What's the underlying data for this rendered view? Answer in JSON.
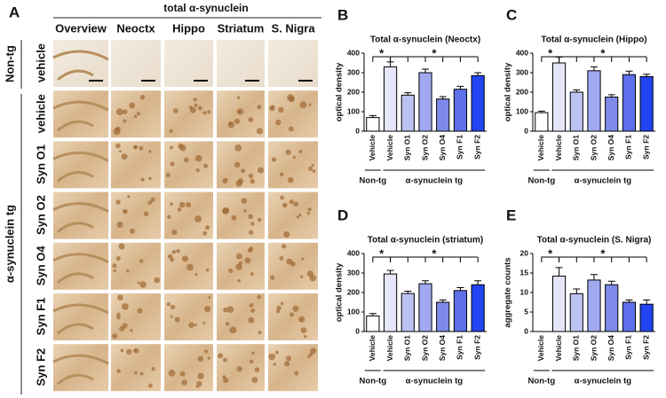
{
  "panel_a": {
    "letter": "A",
    "title": "total α-synuclein",
    "columns": [
      "Overview",
      "Neoctx",
      "Hippo",
      "Striatum",
      "S. Nigra"
    ],
    "groups": [
      "Non-tg",
      "α-synuclein tg"
    ],
    "rows": [
      "vehicle",
      "vehicle",
      "Syn O1",
      "Syn O2",
      "Syn O4",
      "Syn F1",
      "Syn F2"
    ]
  },
  "chart_data": [
    {
      "type": "bar",
      "panel": "B",
      "title": "Total α-synuclein (Neoctx)",
      "y_label": "optical density",
      "categories": [
        "Vehicle",
        "Vehicle",
        "Syn O1",
        "Syn O2",
        "Syn O4",
        "Syn F1",
        "Syn F2"
      ],
      "values": [
        70,
        330,
        185,
        300,
        165,
        215,
        285
      ],
      "errors": [
        10,
        25,
        12,
        18,
        12,
        15,
        15
      ],
      "colors": [
        "#ffffff",
        "#e6e6fa",
        "#bcc2f2",
        "#a0a9ef",
        "#7f8ae8",
        "#5e70ea",
        "#2244f2"
      ],
      "ylim": [
        0,
        400
      ],
      "yticks": [
        0,
        100,
        200,
        300,
        400
      ],
      "groups": [
        "Non-tg",
        "α-synuclein tg"
      ],
      "annotations": [
        "*",
        "*"
      ]
    },
    {
      "type": "bar",
      "panel": "C",
      "title": "Total α-synuclein (Hippo)",
      "y_label": "optical density",
      "categories": [
        "Vehicle",
        "Vehicle",
        "Syn O1",
        "Syn O2",
        "Syn O4",
        "Syn F1",
        "Syn F2"
      ],
      "values": [
        95,
        350,
        200,
        310,
        175,
        290,
        280
      ],
      "errors": [
        8,
        30,
        12,
        20,
        12,
        18,
        12
      ],
      "colors": [
        "#ffffff",
        "#e6e6fa",
        "#bcc2f2",
        "#a0a9ef",
        "#7f8ae8",
        "#5e70ea",
        "#2244f2"
      ],
      "ylim": [
        0,
        400
      ],
      "yticks": [
        0,
        100,
        200,
        300,
        400
      ],
      "groups": [
        "Non-tg",
        "α-synuclein tg"
      ],
      "annotations": [
        "*",
        "*"
      ]
    },
    {
      "type": "bar",
      "panel": "D",
      "title": "Total α-synuclein (striatum)",
      "y_label": "optical density",
      "categories": [
        "Vehicle",
        "Vehicle",
        "Syn O1",
        "Syn O2",
        "Syn O4",
        "Syn F1",
        "Syn F2"
      ],
      "values": [
        80,
        295,
        195,
        245,
        150,
        210,
        240
      ],
      "errors": [
        12,
        18,
        12,
        15,
        12,
        15,
        20
      ],
      "colors": [
        "#ffffff",
        "#e6e6fa",
        "#bcc2f2",
        "#a0a9ef",
        "#7f8ae8",
        "#5e70ea",
        "#2244f2"
      ],
      "ylim": [
        0,
        400
      ],
      "yticks": [
        0,
        100,
        200,
        300,
        400
      ],
      "groups": [
        "Non-tg",
        "α-synuclein tg"
      ],
      "annotations": [
        "*",
        "*"
      ]
    },
    {
      "type": "bar",
      "panel": "E",
      "title": "Total α-synuclein (S. Nigra)",
      "y_label": "aggregate counts",
      "categories": [
        "Vehicle",
        "Vehicle",
        "Syn O1",
        "Syn O2",
        "Syn O4",
        "Syn F1",
        "Syn F2"
      ],
      "values": [
        0,
        14.2,
        9.7,
        13.2,
        12,
        7.5,
        7
      ],
      "errors": [
        0,
        2.2,
        1.2,
        1.4,
        0.9,
        0.6,
        1.1
      ],
      "colors": [
        "#ffffff",
        "#e6e6fa",
        "#bcc2f2",
        "#a0a9ef",
        "#7f8ae8",
        "#5e70ea",
        "#2244f2"
      ],
      "ylim": [
        0,
        20
      ],
      "yticks": [
        0,
        5,
        10,
        15,
        20
      ],
      "groups": [
        "Non-tg",
        "α-synuclein tg"
      ],
      "annotations": [
        "*",
        "*"
      ]
    }
  ]
}
